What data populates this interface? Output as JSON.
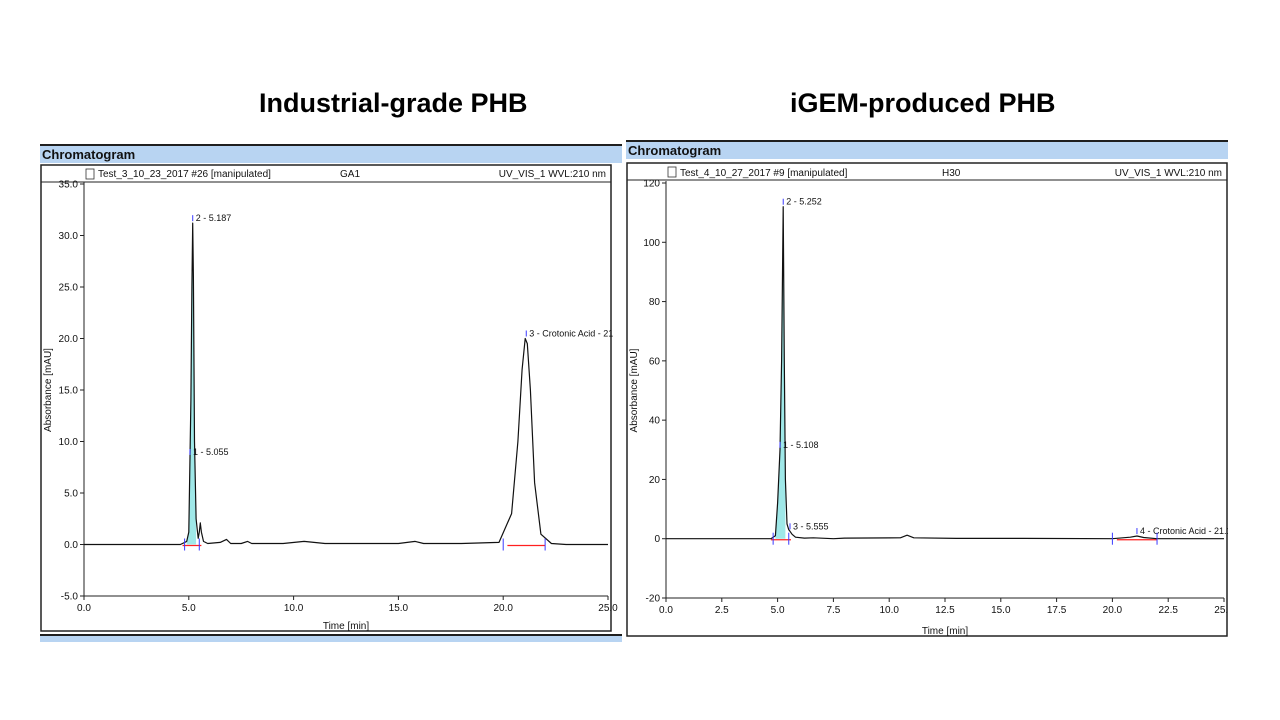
{
  "slide": {
    "left_title": "Industrial-grade PHB",
    "right_title": "iGEM-produced PHB"
  },
  "panels": [
    {
      "header": "Chromatogram",
      "info_left": "Test_3_10_23_2017 #26 [manipulated]",
      "info_mid": "GA1",
      "info_right": "UV_VIS_1 WVL:210 nm"
    },
    {
      "header": "Chromatogram",
      "info_left": "Test_4_10_27_2017 #9 [manipulated]",
      "info_mid": "H30",
      "info_right": "UV_VIS_1 WVL:210 nm"
    }
  ],
  "chart_data": [
    {
      "type": "line",
      "title": "",
      "xlabel": "Time [min]",
      "ylabel": "Absorbance [mAU]",
      "xlim": [
        0,
        25
      ],
      "ylim": [
        -5,
        35
      ],
      "x_ticks": [
        "0.0",
        "5.0",
        "10.0",
        "15.0",
        "20.0",
        "25.0"
      ],
      "x_tick_values": [
        0,
        5,
        10,
        15,
        20,
        25
      ],
      "y_ticks": [
        "35.0",
        "30.0",
        "25.0",
        "20.0",
        "15.0",
        "10.0",
        "5.0",
        "0.0",
        "-5.0"
      ],
      "y_tick_values": [
        35,
        30,
        25,
        20,
        15,
        10,
        5,
        0,
        -5
      ],
      "grid": false,
      "color": "#111111",
      "fill_color": "#7fe0e0",
      "baseline_color": "#ff2020",
      "series": [
        {
          "x": [
            0,
            4.6,
            4.9,
            5.0,
            5.055,
            5.1,
            5.15,
            5.187,
            5.22,
            5.27,
            5.35,
            5.45,
            5.5,
            5.55,
            5.6,
            5.7,
            5.9,
            6.5,
            6.8,
            7.0,
            7.5,
            7.8,
            8.0,
            9.5,
            10.5,
            11.5,
            13,
            15,
            15.8,
            16.2,
            18,
            19.8,
            20.4,
            20.7,
            20.9,
            21.05,
            21.15,
            21.3,
            21.5,
            21.8,
            22.3,
            23,
            25
          ],
          "y": [
            0,
            0,
            0.3,
            1.2,
            8.5,
            14,
            25,
            31.2,
            26,
            10,
            2.5,
            0.6,
            1.2,
            2.1,
            1.2,
            0.3,
            0.1,
            0.2,
            0.5,
            0.1,
            0.1,
            0.3,
            0.1,
            0.1,
            0.3,
            0.1,
            0.1,
            0.1,
            0.3,
            0.1,
            0.1,
            0.2,
            3,
            10,
            17,
            20,
            19.5,
            15,
            6,
            1,
            0.1,
            0,
            0
          ]
        }
      ],
      "peaks": [
        {
          "label": "2 - 5.187",
          "x": 5.187,
          "y": 31.2
        },
        {
          "label": "1 - 5.055",
          "x": 5.055,
          "y": 8.5
        },
        {
          "label": "3 - Crotonic Acid - 21",
          "x": 21.1,
          "y": 20
        }
      ]
    },
    {
      "type": "line",
      "title": "",
      "xlabel": "Time [min]",
      "ylabel": "Absorbance [mAU]",
      "xlim": [
        0,
        25
      ],
      "ylim": [
        -20,
        120
      ],
      "x_ticks": [
        "0.0",
        "2.5",
        "5.0",
        "7.5",
        "10.0",
        "12.5",
        "15.0",
        "17.5",
        "20.0",
        "22.5",
        "25.0"
      ],
      "x_tick_values": [
        0,
        2.5,
        5,
        7.5,
        10,
        12.5,
        15,
        17.5,
        20,
        22.5,
        25
      ],
      "y_ticks": [
        "120",
        "100",
        "80",
        "60",
        "40",
        "20",
        "0",
        "-20"
      ],
      "y_tick_values": [
        120,
        100,
        80,
        60,
        40,
        20,
        0,
        -20
      ],
      "grid": false,
      "color": "#111111",
      "fill_color": "#7fe0e0",
      "baseline_color": "#ff2020",
      "series": [
        {
          "x": [
            0,
            4.7,
            4.9,
            5.0,
            5.108,
            5.18,
            5.252,
            5.3,
            5.35,
            5.42,
            5.5,
            5.555,
            5.65,
            5.8,
            6.2,
            6.6,
            7.5,
            8,
            10.5,
            10.8,
            11.1,
            13,
            16,
            20,
            20.8,
            21.1,
            21.4,
            22,
            25
          ],
          "y": [
            0,
            0,
            1,
            12,
            30,
            60,
            112,
            60,
            20,
            5,
            3,
            2.5,
            1.5,
            0.5,
            0.2,
            0.3,
            0,
            0.2,
            0.3,
            1.2,
            0.3,
            0.1,
            0.1,
            0,
            0.5,
            0.9,
            0.4,
            0,
            0
          ]
        }
      ],
      "peaks": [
        {
          "label": "2 - 5.252",
          "x": 5.252,
          "y": 112
        },
        {
          "label": "1 - 5.108",
          "x": 5.108,
          "y": 30
        },
        {
          "label": "3 - 5.555",
          "x": 5.555,
          "y": 2.5
        },
        {
          "label": "4 - Crotonic Acid - 21.1",
          "x": 21.1,
          "y": 0.9
        }
      ]
    }
  ]
}
